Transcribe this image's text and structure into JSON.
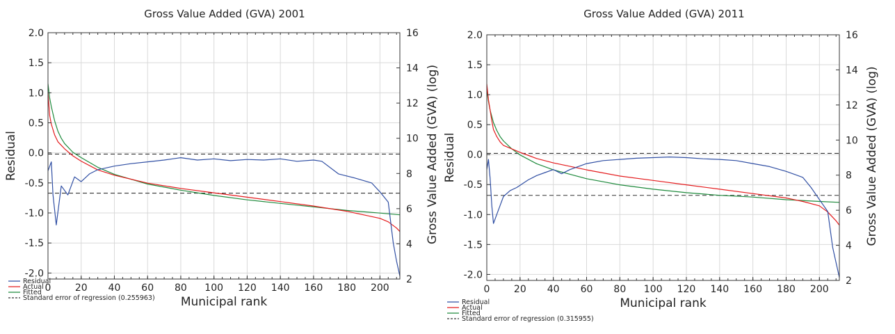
{
  "colors": {
    "residual": "#2f4ea3",
    "actual": "#e41a1c",
    "fitted": "#1e8a3c",
    "standard_error": "#333333",
    "grid": "#d9d9d9"
  },
  "chart_data": [
    {
      "type": "line",
      "title": "Gross Value Added (GVA) 2001",
      "xlabel": "Municipal rank",
      "ylabel": "Residual",
      "y2label": "Gross Value Added (GVA) (log)",
      "xlim": [
        0,
        212
      ],
      "ylim": [
        -2.1,
        2.0
      ],
      "y2lim": [
        2,
        16
      ],
      "xticks": [
        0,
        20,
        40,
        60,
        80,
        100,
        120,
        140,
        160,
        180,
        200
      ],
      "yticks": [
        "2.0",
        "1.5",
        "1.0",
        "0.5",
        "0.0",
        "-0.5",
        "-1.0",
        "-1.5",
        "-2.0"
      ],
      "y2ticks": [
        "16",
        "14",
        "12",
        "10",
        "8",
        "6",
        "4",
        "2"
      ],
      "grid": true,
      "legend": {
        "placement": "bottom-left",
        "entries": [
          "Residual",
          "Actual",
          "Fitted",
          "Standard error of regression (0.255963)"
        ]
      },
      "series": [
        {
          "name": "Residual",
          "axis": "left",
          "x": [
            0,
            2,
            3,
            5,
            8,
            12,
            16,
            20,
            25,
            30,
            40,
            50,
            60,
            70,
            80,
            90,
            100,
            110,
            120,
            130,
            140,
            150,
            160,
            165,
            175,
            185,
            195,
            200,
            205,
            208,
            210,
            212
          ],
          "y": [
            -0.3,
            -0.15,
            -0.7,
            -1.2,
            -0.55,
            -0.7,
            -0.4,
            -0.48,
            -0.35,
            -0.28,
            -0.22,
            -0.18,
            -0.15,
            -0.12,
            -0.08,
            -0.12,
            -0.1,
            -0.13,
            -0.11,
            -0.12,
            -0.1,
            -0.14,
            -0.12,
            -0.14,
            -0.35,
            -0.42,
            -0.5,
            -0.65,
            -0.82,
            -1.5,
            -1.8,
            -2.05
          ]
        },
        {
          "name": "Actual",
          "axis": "right",
          "x": [
            0,
            1,
            2,
            4,
            6,
            8,
            10,
            15,
            20,
            30,
            40,
            60,
            80,
            100,
            120,
            140,
            160,
            180,
            190,
            200,
            205,
            210,
            212
          ],
          "y": [
            12.6,
            11.3,
            10.8,
            10.2,
            9.8,
            9.6,
            9.4,
            9.0,
            8.7,
            8.2,
            7.9,
            7.45,
            7.15,
            6.9,
            6.65,
            6.4,
            6.15,
            5.85,
            5.65,
            5.45,
            5.25,
            4.9,
            4.7
          ]
        },
        {
          "name": "Fitted",
          "axis": "right",
          "x": [
            0,
            1,
            2,
            4,
            6,
            8,
            10,
            15,
            20,
            30,
            40,
            60,
            80,
            100,
            120,
            140,
            160,
            180,
            200,
            212
          ],
          "y": [
            13.1,
            12.3,
            11.8,
            11.0,
            10.4,
            10.0,
            9.7,
            9.2,
            8.9,
            8.35,
            7.95,
            7.4,
            7.05,
            6.75,
            6.5,
            6.3,
            6.1,
            5.9,
            5.75,
            5.65
          ]
        }
      ],
      "reference_lines": [
        {
          "name": "Standard error of regression (0.255963)",
          "axis": "left",
          "y": [
            -0.02,
            -0.67
          ]
        }
      ]
    },
    {
      "type": "line",
      "title": "Gross Value Added (GVA) 2011",
      "xlabel": "Municipal rank",
      "ylabel": "Residual",
      "y2label": "Gross Value Added (GVA) (log)",
      "xlim": [
        0,
        212
      ],
      "ylim": [
        -2.1,
        2.0
      ],
      "y2lim": [
        2,
        16
      ],
      "xticks": [
        0,
        20,
        40,
        60,
        80,
        100,
        120,
        140,
        160,
        180,
        200
      ],
      "yticks": [
        "2.0",
        "1.5",
        "1.0",
        "0.5",
        "0.0",
        "-0.5",
        "-1.0",
        "-1.5",
        "-2.0"
      ],
      "y2ticks": [
        "16",
        "14",
        "12",
        "10",
        "8",
        "6",
        "4",
        "2"
      ],
      "grid": true,
      "legend": {
        "placement": "bottom-left",
        "entries": [
          "Residual",
          "Actual",
          "Fitted",
          "Standard error of regression (0.315955)"
        ]
      },
      "series": [
        {
          "name": "Residual",
          "axis": "left",
          "x": [
            0,
            1,
            2,
            3,
            4,
            6,
            8,
            10,
            14,
            18,
            25,
            30,
            35,
            40,
            45,
            50,
            60,
            70,
            80,
            90,
            100,
            110,
            120,
            130,
            140,
            150,
            160,
            170,
            180,
            190,
            195,
            200,
            205,
            208,
            210,
            212
          ],
          "y": [
            -0.25,
            -0.08,
            -0.4,
            -0.85,
            -1.15,
            -1.0,
            -0.85,
            -0.7,
            -0.6,
            -0.55,
            -0.42,
            -0.35,
            -0.3,
            -0.25,
            -0.32,
            -0.25,
            -0.15,
            -0.1,
            -0.08,
            -0.06,
            -0.05,
            -0.04,
            -0.05,
            -0.07,
            -0.08,
            -0.1,
            -0.15,
            -0.2,
            -0.28,
            -0.38,
            -0.55,
            -0.75,
            -0.95,
            -1.55,
            -1.8,
            -2.05
          ]
        },
        {
          "name": "Actual",
          "axis": "right",
          "x": [
            0,
            1,
            2,
            3,
            4,
            6,
            8,
            10,
            15,
            20,
            30,
            40,
            60,
            80,
            100,
            120,
            140,
            160,
            180,
            190,
            200,
            205,
            210,
            212
          ],
          "y": [
            13.2,
            12.3,
            11.7,
            11.1,
            10.6,
            10.2,
            9.9,
            9.7,
            9.5,
            9.3,
            8.95,
            8.7,
            8.3,
            7.95,
            7.7,
            7.45,
            7.2,
            6.95,
            6.7,
            6.5,
            6.25,
            5.9,
            5.4,
            5.15
          ]
        },
        {
          "name": "Fitted",
          "axis": "right",
          "x": [
            0,
            1,
            2,
            4,
            6,
            8,
            10,
            15,
            20,
            30,
            40,
            60,
            80,
            100,
            120,
            140,
            160,
            180,
            200,
            212
          ],
          "y": [
            12.9,
            12.2,
            11.7,
            11.0,
            10.55,
            10.2,
            9.95,
            9.5,
            9.15,
            8.65,
            8.3,
            7.8,
            7.45,
            7.2,
            7.0,
            6.85,
            6.75,
            6.6,
            6.5,
            6.45
          ]
        }
      ],
      "reference_lines": [
        {
          "name": "Standard error of regression (0.315955)",
          "axis": "left",
          "y": [
            0.02,
            -0.68
          ]
        }
      ]
    }
  ]
}
